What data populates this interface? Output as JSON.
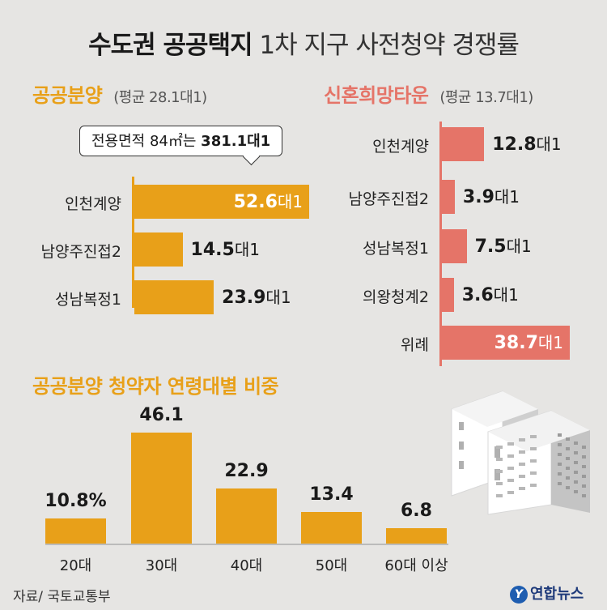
{
  "title": {
    "bold": "수도권 공공택지",
    "rest": "1차 지구 사전청약 경쟁률"
  },
  "chart_data": [
    {
      "type": "bar",
      "title": "공공분양",
      "subtitle": "(평균 28.1대1)",
      "callout": {
        "prefix": "전용면적 84㎡는",
        "value": "381.1대1"
      },
      "categories": [
        "인천계양",
        "남양주진접2",
        "성남복정1"
      ],
      "values": [
        52.6,
        14.5,
        23.9
      ],
      "value_suffix": "대1",
      "color": "#e8a019"
    },
    {
      "type": "bar",
      "title": "신혼희망타운",
      "subtitle": "(평균 13.7대1)",
      "categories": [
        "인천계양",
        "남양주진접2",
        "성남복정1",
        "의왕청계2",
        "위례"
      ],
      "values": [
        12.8,
        3.9,
        7.5,
        3.6,
        38.7
      ],
      "value_suffix": "대1",
      "color": "#e57468"
    },
    {
      "type": "bar",
      "title": "공공분양 청약자 연령대별 비중",
      "categories": [
        "20대",
        "30대",
        "40대",
        "50대",
        "60대 이상"
      ],
      "values": [
        10.8,
        46.1,
        22.9,
        13.4,
        6.8
      ],
      "value_labels": [
        "10.8%",
        "46.1",
        "22.9",
        "13.4",
        "6.8"
      ],
      "unit": "%",
      "color": "#e8a019"
    }
  ],
  "source": "자료/ 국토교통부",
  "logo": {
    "mark": "Y",
    "text": "연합뉴스"
  },
  "icon": "apartment-buildings-icon"
}
